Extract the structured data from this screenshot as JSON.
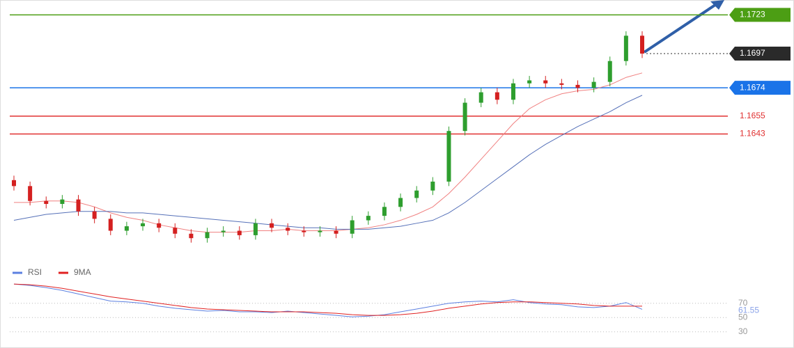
{
  "chart_data": [
    {
      "type": "candlestick",
      "ylim": [
        1.156,
        1.1733
      ],
      "open": [
        1.1612,
        1.1608,
        1.1598,
        1.1596,
        1.1599,
        1.1591,
        1.1586,
        1.1578,
        1.1581,
        1.1583,
        1.158,
        1.1576,
        1.1573,
        1.1577,
        1.1578,
        1.1575,
        1.1583,
        1.158,
        1.1578,
        1.1577,
        1.1578,
        1.1576,
        1.1585,
        1.1588,
        1.1594,
        1.16,
        1.1605,
        1.1611,
        1.1645,
        1.1664,
        1.1671,
        1.1666,
        1.1677,
        1.1679,
        1.1677,
        1.1676,
        1.1674,
        1.1678,
        1.1692,
        1.1709
      ],
      "high": [
        1.1615,
        1.1611,
        1.1601,
        1.1602,
        1.1602,
        1.1594,
        1.1589,
        1.1584,
        1.1586,
        1.1586,
        1.1583,
        1.1579,
        1.158,
        1.1581,
        1.1581,
        1.1586,
        1.1586,
        1.1583,
        1.1581,
        1.1581,
        1.1581,
        1.1588,
        1.1591,
        1.1597,
        1.1603,
        1.1608,
        1.1614,
        1.1648,
        1.1667,
        1.1674,
        1.1674,
        1.168,
        1.1682,
        1.1682,
        1.168,
        1.1679,
        1.1681,
        1.1695,
        1.1712,
        1.1712
      ],
      "low": [
        1.1605,
        1.1595,
        1.1593,
        1.1593,
        1.1588,
        1.1583,
        1.1575,
        1.1575,
        1.1578,
        1.1577,
        1.1573,
        1.157,
        1.157,
        1.1574,
        1.1572,
        1.1572,
        1.1577,
        1.1575,
        1.1574,
        1.1574,
        1.1573,
        1.1573,
        1.1582,
        1.1585,
        1.1591,
        1.1597,
        1.1602,
        1.1608,
        1.1642,
        1.1661,
        1.1663,
        1.1663,
        1.1674,
        1.1674,
        1.1673,
        1.1671,
        1.1671,
        1.1675,
        1.1689,
        1.1694
      ],
      "close": [
        1.1608,
        1.1598,
        1.1596,
        1.1599,
        1.1591,
        1.1586,
        1.1578,
        1.1581,
        1.1583,
        1.158,
        1.1576,
        1.1573,
        1.1577,
        1.1578,
        1.1575,
        1.1583,
        1.158,
        1.1578,
        1.1577,
        1.1578,
        1.1576,
        1.1585,
        1.1588,
        1.1594,
        1.16,
        1.1605,
        1.1611,
        1.1645,
        1.1664,
        1.1671,
        1.1666,
        1.1677,
        1.1679,
        1.1677,
        1.1676,
        1.1674,
        1.1678,
        1.1692,
        1.1709,
        1.1697
      ],
      "up_color": "#2e9e2e",
      "down_color": "#d42020",
      "lines": [
        {
          "color": "#f08080",
          "values": [
            1.1597,
            1.1597,
            1.1598,
            1.1598,
            1.1597,
            1.1594,
            1.159,
            1.1587,
            1.1585,
            1.1582,
            1.158,
            1.1578,
            1.1577,
            1.1577,
            1.1577,
            1.1578,
            1.1578,
            1.1579,
            1.1578,
            1.1578,
            1.1578,
            1.1579,
            1.158,
            1.1582,
            1.1585,
            1.1589,
            1.1594,
            1.1603,
            1.1614,
            1.1626,
            1.1638,
            1.165,
            1.166,
            1.1666,
            1.167,
            1.1672,
            1.1673,
            1.1676,
            1.1681,
            1.1684
          ]
        },
        {
          "color": "#5570b8",
          "values": [
            1.1585,
            1.1587,
            1.1589,
            1.159,
            1.1591,
            1.1591,
            1.1591,
            1.159,
            1.159,
            1.1589,
            1.1588,
            1.1587,
            1.1586,
            1.1585,
            1.1584,
            1.1583,
            1.1582,
            1.1581,
            1.158,
            1.158,
            1.1579,
            1.1579,
            1.1579,
            1.158,
            1.1581,
            1.1583,
            1.1585,
            1.159,
            1.1597,
            1.1605,
            1.1613,
            1.1621,
            1.1629,
            1.1636,
            1.1642,
            1.1648,
            1.1653,
            1.1658,
            1.1664,
            1.1669
          ]
        }
      ],
      "levels": [
        {
          "value": 1.1723,
          "color": "#4c9e14",
          "style": "box",
          "dash": false
        },
        {
          "value": 1.1697,
          "color": "#2a2a2a",
          "style": "box",
          "dash": true
        },
        {
          "value": 1.1674,
          "color": "#1a73e8",
          "style": "box",
          "dash": false
        },
        {
          "value": 1.1655,
          "color": "#e03030",
          "style": "text",
          "dash": false
        },
        {
          "value": 1.1643,
          "color": "#e03030",
          "style": "text",
          "dash": false
        }
      ]
    },
    {
      "type": "line",
      "ylim": [
        20,
        100
      ],
      "yticks": [
        70,
        50,
        30
      ],
      "series": [
        {
          "name": "RSI",
          "color": "#5b7fe0",
          "values": [
            97,
            95,
            92,
            88,
            83,
            78,
            73,
            72,
            70,
            66,
            63,
            61,
            59,
            60,
            58,
            58,
            57,
            59,
            57,
            55,
            53,
            51,
            52,
            54,
            58,
            62,
            66,
            70,
            72,
            73,
            72,
            75,
            71,
            69,
            68,
            65,
            64,
            66,
            71,
            61.55
          ]
        },
        {
          "name": "9MA",
          "color": "#e02020",
          "values": [
            97,
            96,
            94,
            91,
            87,
            83,
            79,
            76,
            73,
            70,
            67,
            64,
            62,
            61,
            60,
            59,
            58,
            58,
            58,
            57,
            56,
            54,
            53,
            53,
            54,
            56,
            59,
            63,
            66,
            69,
            71,
            72,
            72,
            71,
            70,
            69,
            67,
            66,
            66,
            66
          ]
        }
      ]
    }
  ]
}
